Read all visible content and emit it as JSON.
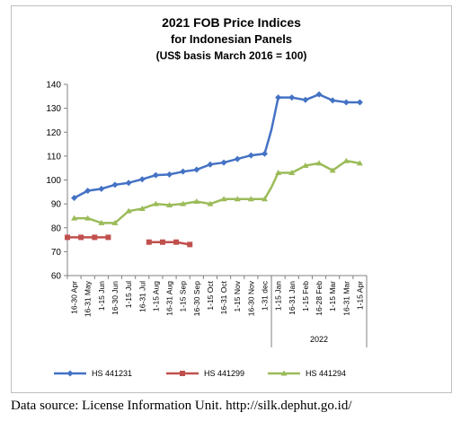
{
  "chart_data": {
    "type": "line",
    "title_lines": [
      "2021 FOB Price Indices",
      "for Indonesian Panels",
      "(US$ basis March 2016 = 100)"
    ],
    "categories": [
      "16-30 Apr",
      "16-31 May",
      "1-15 Jun",
      "16-30 Jun",
      "1-15 Jul",
      "16-31 Jul",
      "1-15 Aug",
      "16-31 Aug",
      "1-15 Sep",
      "16-30 Sep",
      "1-15 Oct",
      "16-31 Oct",
      "1-15 Nov",
      "16-30 Nov",
      "1-31 dec",
      "1-15 Jan",
      "16-31 Jan",
      "1-15 Feb",
      "16-28 Feb",
      "1-15 Mar",
      "16-31 Mar",
      "1-15 Apr"
    ],
    "year_group": {
      "label": "2022",
      "from_index": 15,
      "to_index": 21
    },
    "x": [
      0,
      1,
      2,
      3,
      4,
      5,
      6,
      7,
      8,
      9,
      10,
      11,
      12,
      13,
      14,
      14.5,
      15,
      16,
      17,
      18,
      19,
      20,
      21
    ],
    "series": [
      {
        "name": "HS 441231",
        "color": "#4472c4",
        "marker": "diamond",
        "values": [
          92.5,
          95.5,
          96.3,
          98,
          98.8,
          100.3,
          102,
          102.3,
          103.5,
          104.3,
          106.5,
          107.3,
          108.8,
          110.3,
          111,
          121,
          134.5,
          134.5,
          133.5,
          135.8,
          133.3,
          132.5,
          132.5
        ],
        "points": [
          0,
          1,
          2,
          3,
          4,
          5,
          6,
          7,
          8,
          9,
          10,
          11,
          12,
          13,
          14,
          16,
          17,
          18,
          19,
          20,
          21,
          22
        ]
      },
      {
        "name": "HS 441299",
        "color": "#c0504d",
        "marker": "square",
        "segments": [
          {
            "x": [
              -0.5,
              0.5,
              1.5,
              2.5
            ],
            "values": [
              76,
              76,
              76,
              76
            ]
          },
          {
            "x": [
              5.5,
              6.5,
              7.5,
              8.5
            ],
            "values": [
              74,
              74,
              74,
              73
            ]
          }
        ]
      },
      {
        "name": "HS 441294",
        "color": "#9bbb59",
        "marker": "triangle",
        "values": [
          84,
          84,
          82,
          82,
          87,
          88,
          90,
          89.5,
          90,
          91,
          90,
          92,
          92,
          92,
          92,
          97,
          103,
          103,
          106,
          107,
          104,
          108,
          107
        ],
        "points": [
          0,
          1,
          2,
          3,
          4,
          5,
          6,
          7,
          8,
          9,
          10,
          11,
          12,
          13,
          14,
          16,
          17,
          18,
          19,
          20,
          21,
          22
        ]
      }
    ],
    "ylim": [
      60,
      140
    ],
    "yticks": [
      60,
      70,
      80,
      90,
      100,
      110,
      120,
      130,
      140
    ],
    "grid": false,
    "legend_position": "bottom"
  },
  "source_note": "Data source: License Information Unit. http://silk.dephut.go.id/"
}
